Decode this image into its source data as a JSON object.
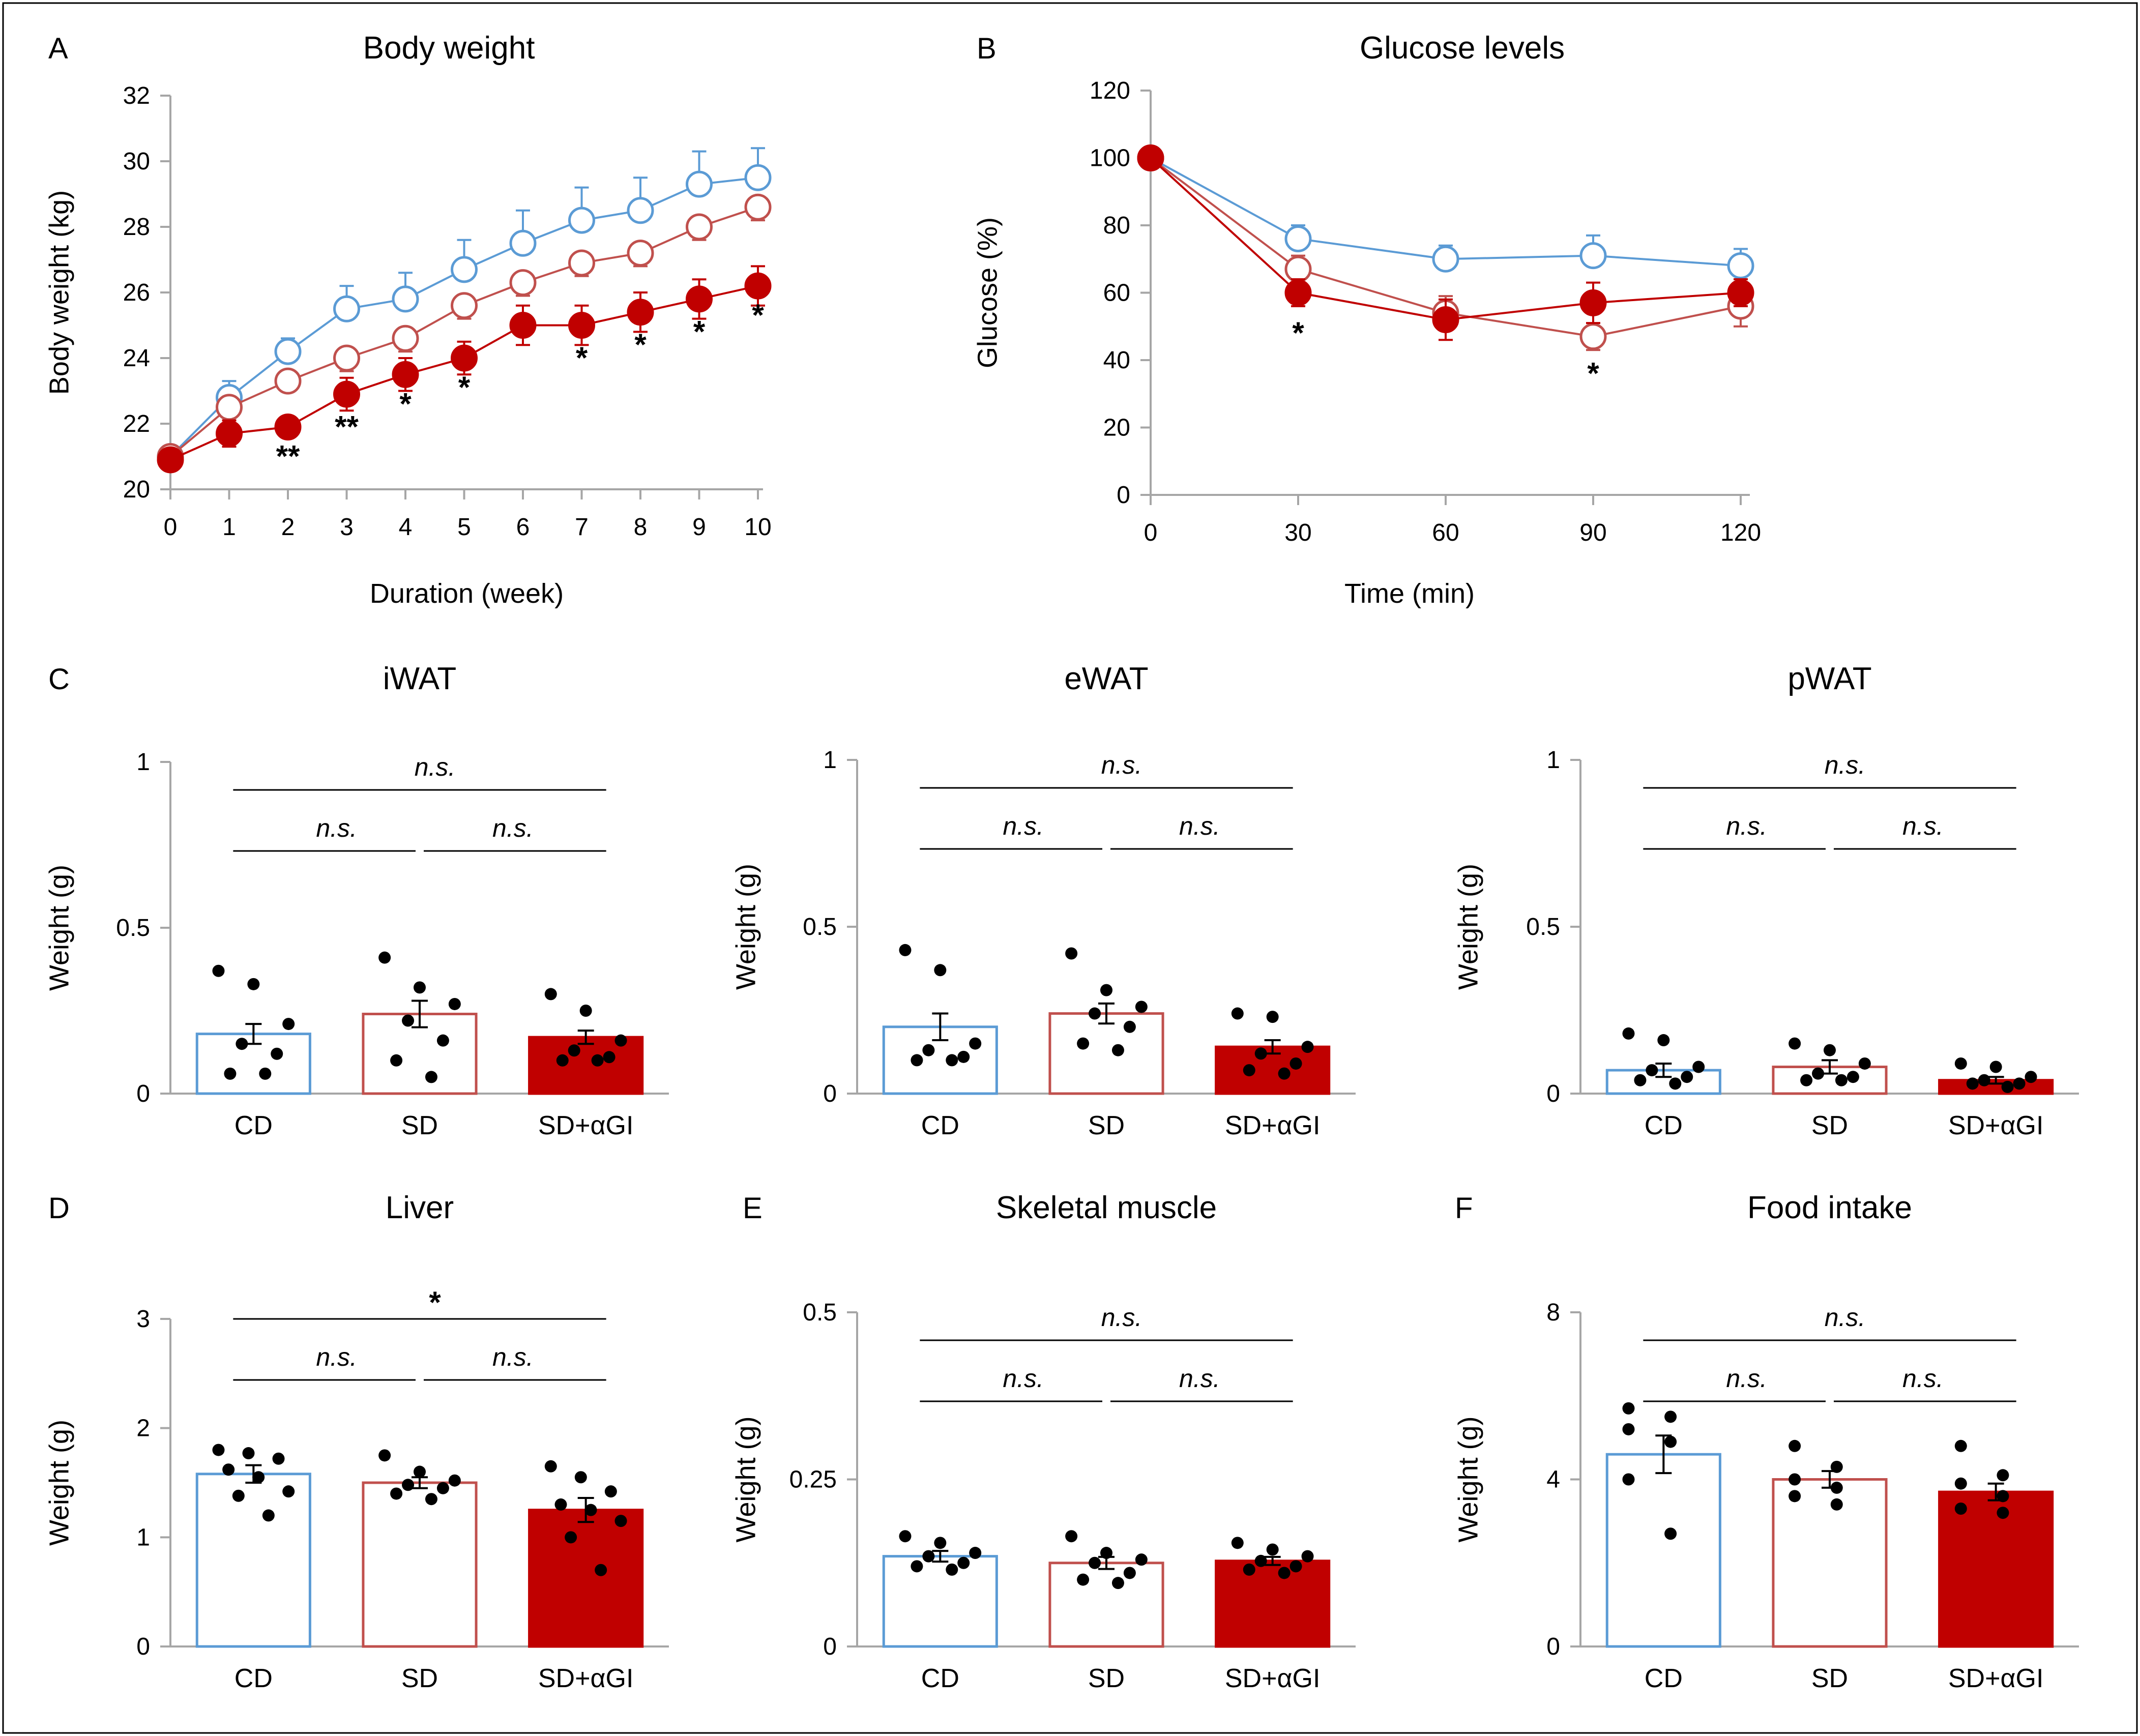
{
  "figure": {
    "colors": {
      "cd": "#5b9bd5",
      "sd": "#c0504d",
      "sd_agi": "#c00000",
      "axis": "#a6a6a6",
      "text": "#000000"
    }
  },
  "chart_data": [
    {
      "id": "A",
      "panel_letter": "A",
      "type": "line",
      "title": "Body weight",
      "xlabel": "Duration (week)",
      "ylabel": "Body weight (kg)",
      "xlim": [
        0,
        10
      ],
      "ylim": [
        20,
        32
      ],
      "xticks": [
        0,
        1,
        2,
        3,
        4,
        5,
        6,
        7,
        8,
        9,
        10
      ],
      "yticks": [
        20,
        22,
        24,
        26,
        28,
        30,
        32
      ],
      "series": [
        {
          "name": "CD",
          "style": "open",
          "color": "#5b9bd5",
          "x": [
            0,
            1,
            2,
            3,
            4,
            5,
            6,
            7,
            8,
            9,
            10
          ],
          "y": [
            21.0,
            22.8,
            24.2,
            25.5,
            25.8,
            26.7,
            27.5,
            28.2,
            28.5,
            29.3,
            29.5
          ],
          "err": [
            0.2,
            0.5,
            0.4,
            0.7,
            0.8,
            0.9,
            1.0,
            1.0,
            1.0,
            1.0,
            0.9
          ],
          "err_dir": "up"
        },
        {
          "name": "SD",
          "style": "open",
          "color": "#c0504d",
          "x": [
            0,
            1,
            2,
            3,
            4,
            5,
            6,
            7,
            8,
            9,
            10
          ],
          "y": [
            21.0,
            22.5,
            23.3,
            24.0,
            24.6,
            25.6,
            26.3,
            26.9,
            27.2,
            28.0,
            28.6
          ],
          "err": [
            0.2,
            0.3,
            0.3,
            0.4,
            0.4,
            0.4,
            0.4,
            0.4,
            0.4,
            0.4,
            0.4
          ],
          "err_dir": "down"
        },
        {
          "name": "SD+αGI",
          "style": "filled",
          "color": "#c00000",
          "x": [
            0,
            1,
            2,
            3,
            4,
            5,
            6,
            7,
            8,
            9,
            10
          ],
          "y": [
            20.9,
            21.7,
            21.9,
            22.9,
            23.5,
            24.0,
            25.0,
            25.0,
            25.4,
            25.8,
            26.2
          ],
          "err": [
            0.2,
            0.4,
            0.3,
            0.5,
            0.5,
            0.5,
            0.6,
            0.6,
            0.6,
            0.6,
            0.6
          ],
          "err_dir": "both"
        }
      ],
      "annotations": [
        {
          "x": 2,
          "y": 21.0,
          "text": "**"
        },
        {
          "x": 3,
          "y": 21.9,
          "text": "**"
        },
        {
          "x": 4,
          "y": 22.6,
          "text": "*"
        },
        {
          "x": 5,
          "y": 23.1,
          "text": "*"
        },
        {
          "x": 7,
          "y": 24.0,
          "text": "*"
        },
        {
          "x": 8,
          "y": 24.4,
          "text": "*"
        },
        {
          "x": 9,
          "y": 24.8,
          "text": "*"
        },
        {
          "x": 10,
          "y": 25.3,
          "text": "*"
        }
      ]
    },
    {
      "id": "B",
      "panel_letter": "B",
      "type": "line",
      "title": "Glucose levels",
      "xlabel": "Time (min)",
      "ylabel": "Glucose  (%)",
      "xlim": [
        0,
        120
      ],
      "ylim": [
        0,
        120
      ],
      "xticks": [
        0,
        30,
        60,
        90,
        120
      ],
      "yticks": [
        0,
        20,
        40,
        60,
        80,
        100,
        120
      ],
      "series": [
        {
          "name": "CD",
          "style": "open",
          "color": "#5b9bd5",
          "x": [
            0,
            30,
            60,
            90,
            120
          ],
          "y": [
            100,
            76,
            70,
            71,
            68
          ],
          "err": [
            0,
            4,
            4,
            6,
            5
          ],
          "err_dir": "up"
        },
        {
          "name": "SD",
          "style": "open",
          "color": "#c0504d",
          "x": [
            0,
            30,
            60,
            90,
            120
          ],
          "y": [
            100,
            67,
            54,
            47,
            56
          ],
          "err": [
            0,
            4,
            5,
            4,
            6
          ],
          "err_dir": "both"
        },
        {
          "name": "SD+αGI",
          "style": "filled",
          "color": "#c00000",
          "x": [
            0,
            30,
            60,
            90,
            120
          ],
          "y": [
            100,
            60,
            52,
            57,
            60
          ],
          "err": [
            0,
            4,
            6,
            6,
            4
          ],
          "err_dir": "both"
        }
      ],
      "annotations": [
        {
          "x": 30,
          "y": 48,
          "text": "*"
        },
        {
          "x": 90,
          "y": 36,
          "text": "*"
        }
      ]
    },
    {
      "id": "C1",
      "panel_letter": "C",
      "type": "bar",
      "title": "iWAT",
      "ylabel": "Weight (g)",
      "ylim": [
        0,
        1
      ],
      "yticks": [
        0,
        0.5,
        1
      ],
      "ytick_labels": [
        "0",
        "0.5",
        "1"
      ],
      "categories": [
        "CD",
        "SD",
        "SD+αGI"
      ],
      "values": [
        0.18,
        0.24,
        0.17
      ],
      "errors": [
        0.03,
        0.04,
        0.02
      ],
      "points": [
        [
          0.37,
          0.33,
          0.21,
          0.15,
          0.12,
          0.06,
          0.06
        ],
        [
          0.41,
          0.32,
          0.27,
          0.22,
          0.16,
          0.1,
          0.05
        ],
        [
          0.3,
          0.25,
          0.16,
          0.13,
          0.11,
          0.1,
          0.1
        ]
      ],
      "significance": {
        "top": "n.s.",
        "left": "n.s.",
        "right": "n.s."
      }
    },
    {
      "id": "C2",
      "panel_letter": "",
      "type": "bar",
      "title": "eWAT",
      "ylabel": "Weight (g)",
      "ylim": [
        0,
        1
      ],
      "yticks": [
        0,
        0.5,
        1
      ],
      "ytick_labels": [
        "0",
        "0.5",
        "1"
      ],
      "categories": [
        "CD",
        "SD",
        "SD+αGI"
      ],
      "values": [
        0.2,
        0.24,
        0.14
      ],
      "errors": [
        0.04,
        0.03,
        0.02
      ],
      "points": [
        [
          0.43,
          0.37,
          0.15,
          0.13,
          0.11,
          0.1,
          0.1
        ],
        [
          0.42,
          0.31,
          0.26,
          0.24,
          0.2,
          0.15,
          0.13
        ],
        [
          0.24,
          0.23,
          0.14,
          0.12,
          0.09,
          0.07,
          0.06
        ]
      ],
      "significance": {
        "top": "n.s.",
        "left": "n.s.",
        "right": "n.s."
      }
    },
    {
      "id": "C3",
      "panel_letter": "",
      "type": "bar",
      "title": "pWAT",
      "ylabel": "Weight (g)",
      "ylim": [
        0,
        1
      ],
      "yticks": [
        0,
        0.5,
        1
      ],
      "ytick_labels": [
        "0",
        "0.5",
        "1"
      ],
      "categories": [
        "CD",
        "SD",
        "SD+αGI"
      ],
      "values": [
        0.07,
        0.08,
        0.04
      ],
      "errors": [
        0.02,
        0.02,
        0.01
      ],
      "points": [
        [
          0.18,
          0.16,
          0.08,
          0.07,
          0.05,
          0.04,
          0.03
        ],
        [
          0.15,
          0.13,
          0.09,
          0.06,
          0.05,
          0.04,
          0.04
        ],
        [
          0.09,
          0.08,
          0.05,
          0.04,
          0.03,
          0.03,
          0.02
        ]
      ],
      "significance": {
        "top": "n.s.",
        "left": "n.s.",
        "right": "n.s."
      }
    },
    {
      "id": "D",
      "panel_letter": "D",
      "type": "bar",
      "title": "Liver",
      "ylabel": "Weight (g)",
      "ylim": [
        0,
        3
      ],
      "yticks": [
        0,
        1,
        2,
        3
      ],
      "ytick_labels": [
        "0",
        "1",
        "2",
        "3"
      ],
      "categories": [
        "CD",
        "SD",
        "SD+αGI"
      ],
      "values": [
        1.58,
        1.5,
        1.25
      ],
      "errors": [
        0.08,
        0.05,
        0.11
      ],
      "points": [
        [
          1.8,
          1.77,
          1.72,
          1.62,
          1.55,
          1.42,
          1.38,
          1.2
        ],
        [
          1.75,
          1.6,
          1.52,
          1.48,
          1.45,
          1.4,
          1.35
        ],
        [
          1.65,
          1.55,
          1.42,
          1.3,
          1.25,
          1.15,
          1.0,
          0.7
        ]
      ],
      "significance": {
        "top": "*",
        "left": "n.s.",
        "right": "n.s."
      }
    },
    {
      "id": "E",
      "panel_letter": "E",
      "type": "bar",
      "title": "Skeletal muscle",
      "ylabel": "Weight (g)",
      "ylim": [
        0,
        0.5
      ],
      "yticks": [
        0,
        0.25,
        0.5
      ],
      "ytick_labels": [
        "0",
        "0.25",
        "0.5"
      ],
      "categories": [
        "CD",
        "SD",
        "SD+αGI"
      ],
      "values": [
        0.135,
        0.125,
        0.128
      ],
      "errors": [
        0.008,
        0.009,
        0.006
      ],
      "points": [
        [
          0.165,
          0.155,
          0.14,
          0.135,
          0.125,
          0.12,
          0.115
        ],
        [
          0.165,
          0.14,
          0.13,
          0.125,
          0.11,
          0.1,
          0.095
        ],
        [
          0.155,
          0.145,
          0.135,
          0.128,
          0.12,
          0.115,
          0.11
        ]
      ],
      "significance": {
        "top": "n.s.",
        "left": "n.s.",
        "right": "n.s."
      }
    },
    {
      "id": "F",
      "panel_letter": "F",
      "type": "bar",
      "title": "Food intake",
      "ylabel": "Weight (g)",
      "ylim": [
        0,
        8
      ],
      "yticks": [
        0,
        4,
        8
      ],
      "ytick_labels": [
        "0",
        "4",
        "8"
      ],
      "categories": [
        "CD",
        "SD",
        "SD+αGI"
      ],
      "values": [
        4.6,
        4.0,
        3.7
      ],
      "errors": [
        0.45,
        0.2,
        0.2
      ],
      "points": [
        [
          5.7,
          5.5,
          5.2,
          4.9,
          4.0,
          2.7
        ],
        [
          4.8,
          4.3,
          4.0,
          3.8,
          3.6,
          3.4
        ],
        [
          4.8,
          4.1,
          3.9,
          3.6,
          3.3,
          3.2
        ]
      ],
      "significance": {
        "top": "n.s.",
        "left": "n.s.",
        "right": "n.s."
      }
    }
  ]
}
